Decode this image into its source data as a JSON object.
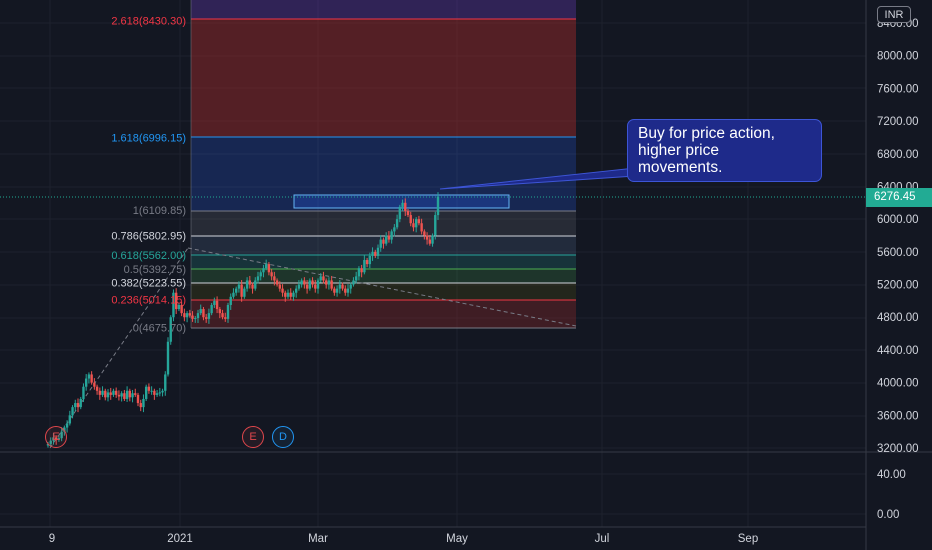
{
  "currency": "INR",
  "last_price": "6276.45",
  "callout": {
    "lines": [
      "Buy for price action,",
      "higher price",
      "movements."
    ]
  },
  "events": [
    {
      "label": "E",
      "kind": "earnings"
    },
    {
      "label": "E",
      "kind": "earnings"
    },
    {
      "label": "D",
      "kind": "dividend"
    }
  ],
  "colors": {
    "background": "#131722",
    "up_candle": "#26a69a",
    "down_candle": "#ef5350",
    "price_tag": "#22ab94",
    "callout_bg": "#1e2a8a"
  },
  "chart_data": {
    "type": "candlestick",
    "price_axis": {
      "ticks": [
        "8400.00",
        "8000.00",
        "7600.00",
        "7200.00",
        "6800.00",
        "6400.00",
        "6000.00",
        "5600.00",
        "5200.00",
        "4800.00",
        "4400.00",
        "4000.00",
        "3600.00",
        "3200.00"
      ],
      "range": [
        3200,
        8500
      ]
    },
    "volume_axis": {
      "ticks": [
        "40.00",
        "0.00"
      ]
    },
    "time_axis": {
      "ticks": [
        "9",
        "2021",
        "Mar",
        "May",
        "Jul",
        "Sep"
      ]
    },
    "fib_levels": [
      {
        "ratio": 2.618,
        "price": 8430.3,
        "label": "2.618(8430.30)",
        "color": "#f23645"
      },
      {
        "ratio": 1.618,
        "price": 6996.15,
        "label": "1.618(6996.15)",
        "color": "#2196f3"
      },
      {
        "ratio": 1,
        "price": 6109.85,
        "label": "1(6109.85)",
        "color": "#787b86"
      },
      {
        "ratio": 0.786,
        "price": 5802.95,
        "label": "0.786(5802.95)",
        "color": "#d1d4dc"
      },
      {
        "ratio": 0.618,
        "price": 5562.0,
        "label": "0.618(5562.00)",
        "color": "#26a69a"
      },
      {
        "ratio": 0.5,
        "price": 5392.75,
        "label": "0.5(5392.75)",
        "color": "#787b86"
      },
      {
        "ratio": 0.382,
        "price": 5223.55,
        "label": "0.382(5223.55)",
        "color": "#d1d4dc"
      },
      {
        "ratio": 0.236,
        "price": 5014.15,
        "label": "0.236(5014.15)",
        "color": "#f23645"
      },
      {
        "ratio": 0,
        "price": 4675.7,
        "label": "0(4675.70)",
        "color": "#787b86"
      }
    ],
    "candles_close": [
      3250,
      3290,
      3330,
      3300,
      3320,
      3400,
      3450,
      3500,
      3600,
      3700,
      3750,
      3700,
      3800,
      3950,
      4050,
      4100,
      4000,
      3950,
      3900,
      3850,
      3900,
      3820,
      3880,
      3850,
      3900,
      3850,
      3830,
      3870,
      3800,
      3900,
      3820,
      3870,
      3850,
      3750,
      3700,
      3800,
      3950,
      3900,
      3900,
      3850,
      3870,
      3880,
      3900,
      4100,
      4500,
      4800,
      5100,
      4900,
      4950,
      4850,
      4800,
      4850,
      4820,
      4780,
      4790,
      4850,
      4900,
      4800,
      4780,
      4850,
      4950,
      5000,
      4900,
      4850,
      4800,
      4780,
      4950,
      5050,
      5100,
      5150,
      5200,
      5050,
      5150,
      5250,
      5200,
      5150,
      5250,
      5300,
      5350,
      5400,
      5450,
      5350,
      5300,
      5250,
      5200,
      5150,
      5100,
      5050,
      5100,
      5050,
      5100,
      5150,
      5200,
      5250,
      5200,
      5150,
      5250,
      5200,
      5150,
      5250,
      5300,
      5250,
      5200,
      5250,
      5150,
      5100,
      5150,
      5200,
      5150,
      5100,
      5150,
      5200,
      5250,
      5300,
      5400,
      5350,
      5500,
      5450,
      5550,
      5600,
      5550,
      5650,
      5750,
      5700,
      5800,
      5750,
      5850,
      5900,
      6000,
      6150,
      6200,
      6100,
      6050,
      5950,
      5900,
      6000,
      5950,
      5850,
      5800,
      5750,
      5700,
      5800,
      6050,
      6276.45
    ]
  }
}
